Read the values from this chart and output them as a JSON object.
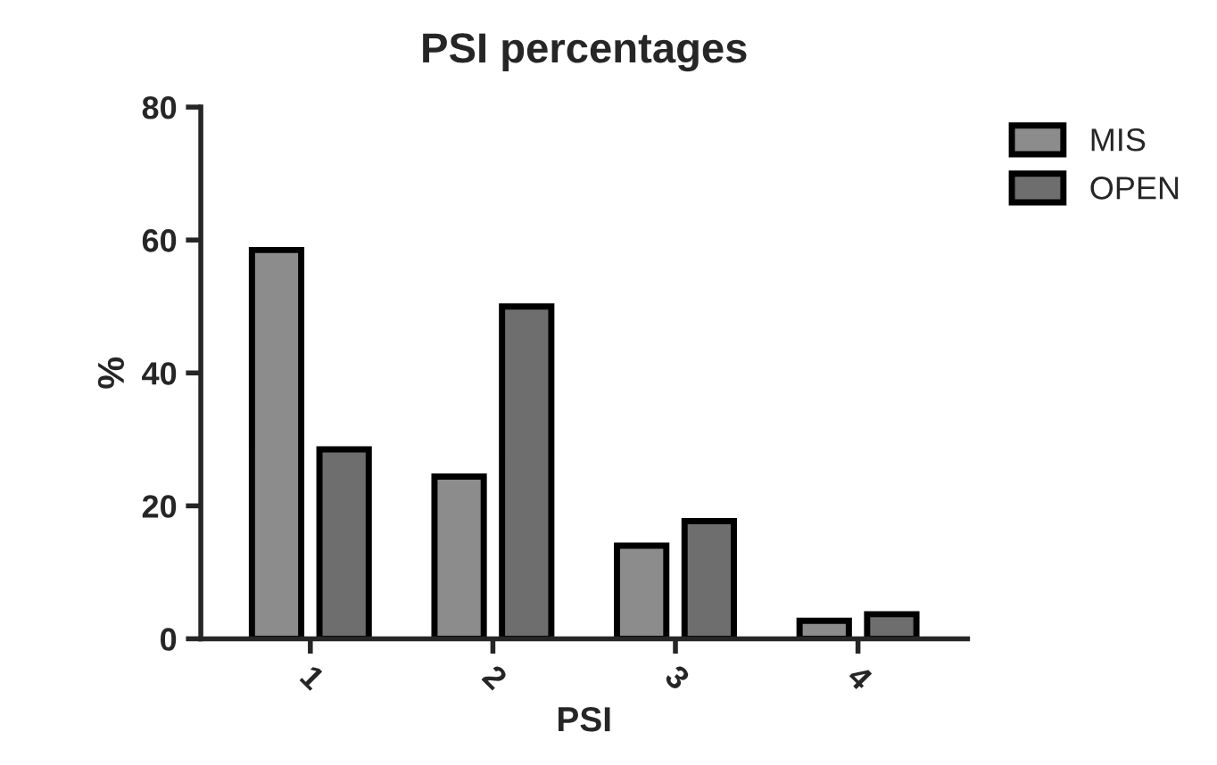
{
  "chart_data": {
    "type": "bar",
    "title": "PSI percentages",
    "xlabel": "PSI",
    "ylabel": "%",
    "categories": [
      "1",
      "2",
      "3",
      "4"
    ],
    "series": [
      {
        "name": "MIS",
        "color": "#8c8c8c",
        "values": [
          58.5,
          24.4,
          14,
          2.7
        ]
      },
      {
        "name": "OPEN",
        "color": "#6e6e6e",
        "values": [
          28.5,
          50,
          17.7,
          3.7
        ]
      }
    ],
    "ylim": [
      0,
      80
    ],
    "yticks": [
      0,
      20,
      40,
      60,
      80
    ],
    "grid": false,
    "legend": "top right"
  }
}
